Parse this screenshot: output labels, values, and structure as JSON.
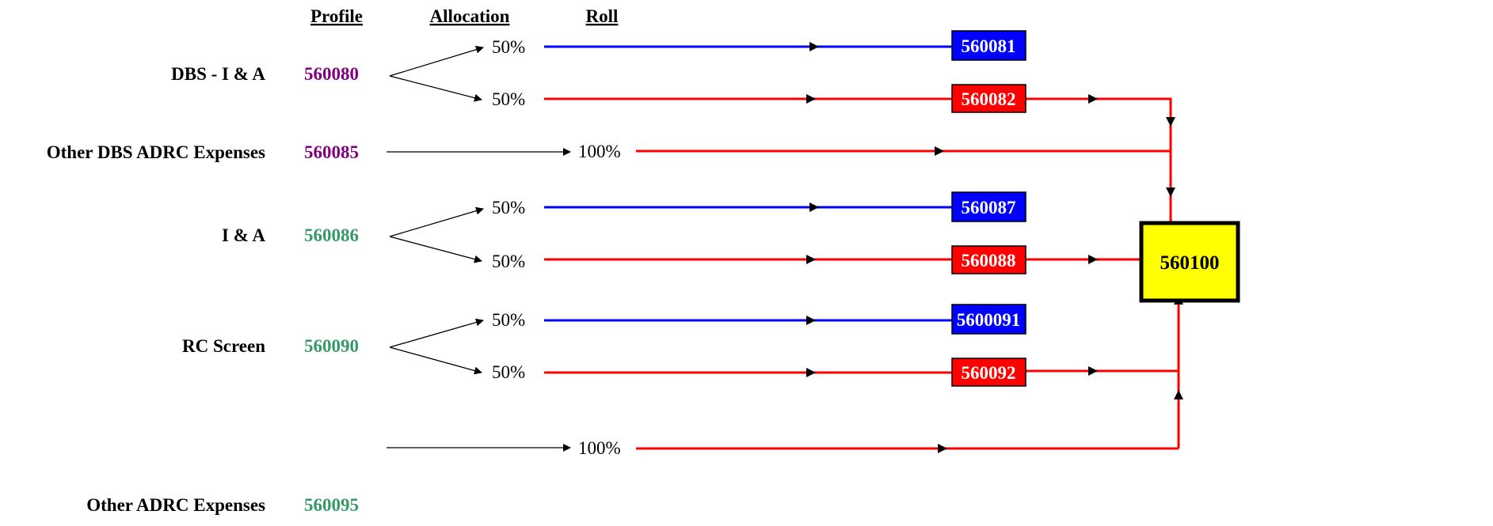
{
  "headers": {
    "profile": "Profile",
    "allocation": "Allocation",
    "roll": "Roll"
  },
  "colors": {
    "purple": "#800080",
    "green": "#339966",
    "blue": "#0000ff",
    "red": "#ff0000",
    "yellow": "#ffff00",
    "black": "#000000"
  },
  "rows": [
    {
      "label": "DBS - I & A",
      "profile": "560080",
      "profile_color": "purple",
      "splits": [
        {
          "pct": "50%",
          "type": "blue",
          "box": "560081"
        },
        {
          "pct": "50%",
          "type": "red",
          "box": "560082"
        }
      ]
    },
    {
      "label": "Other DBS ADRC Expenses",
      "profile": "560085",
      "profile_color": "purple",
      "direct": {
        "pct": "100%"
      }
    },
    {
      "label": "I & A",
      "profile": "560086",
      "profile_color": "green",
      "splits": [
        {
          "pct": "50%",
          "type": "blue",
          "box": "560087"
        },
        {
          "pct": "50%",
          "type": "red",
          "box": "560088"
        }
      ]
    },
    {
      "label": "RC Screen",
      "profile": "560090",
      "profile_color": "green",
      "splits": [
        {
          "pct": "50%",
          "type": "blue",
          "box": "5600091"
        },
        {
          "pct": "50%",
          "type": "red",
          "box": "560092"
        }
      ]
    },
    {
      "label": "Other ADRC Expenses",
      "profile": "560095",
      "profile_color": "green",
      "direct": {
        "pct": "100%"
      }
    }
  ],
  "total": {
    "label": "560100"
  }
}
